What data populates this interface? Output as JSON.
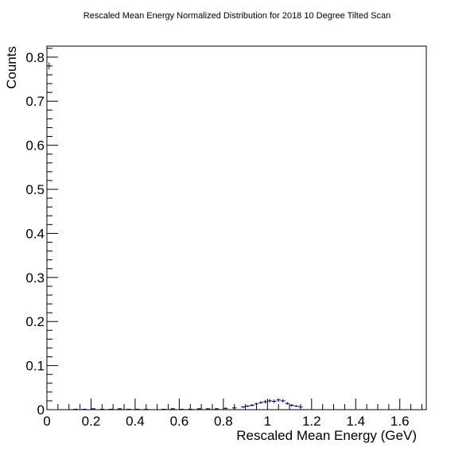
{
  "chart_data": {
    "type": "scatter",
    "title": "Rescaled Mean Energy Normalized Distribution for 2018 10 Degree Tilted Scan",
    "xlabel": "Rescaled Mean Energy (GeV)",
    "ylabel": "Counts",
    "xlim": [
      0,
      1.72
    ],
    "ylim": [
      0,
      0.825
    ],
    "x_ticks": [
      0,
      0.2,
      0.4,
      0.6,
      0.8,
      1,
      1.2,
      1.4,
      1.6
    ],
    "x_tick_labels": [
      "0",
      "0.2",
      "0.4",
      "0.6",
      "0.8",
      "1",
      "1.2",
      "1.4",
      "1.6"
    ],
    "y_ticks": [
      0,
      0.1,
      0.2,
      0.3,
      0.4,
      0.5,
      0.6,
      0.7,
      0.8
    ],
    "y_tick_labels": [
      "0",
      "0.1",
      "0.2",
      "0.3",
      "0.4",
      "0.5",
      "0.6",
      "0.7",
      "0.8"
    ],
    "grid": false,
    "marker_color": "#000066",
    "series": [
      {
        "bin_width": 0.02,
        "x": [
          0.01,
          0.13,
          0.17,
          0.21,
          0.25,
          0.29,
          0.33,
          0.37,
          0.41,
          0.45,
          0.53,
          0.57,
          0.61,
          0.65,
          0.69,
          0.73,
          0.77,
          0.81,
          0.85,
          0.89,
          0.91,
          0.93,
          0.95,
          0.97,
          0.99,
          1.01,
          1.03,
          1.05,
          1.07,
          1.09,
          1.11,
          1.13,
          1.15
        ],
        "y": [
          0.78,
          0.001,
          0.001,
          0.002,
          0.001,
          0.001,
          0.002,
          0.001,
          0.001,
          0.001,
          0.001,
          0.002,
          0.001,
          0.001,
          0.002,
          0.002,
          0.002,
          0.003,
          0.004,
          0.006,
          0.008,
          0.01,
          0.013,
          0.016,
          0.018,
          0.02,
          0.019,
          0.022,
          0.02,
          0.014,
          0.01,
          0.008,
          0.006
        ],
        "yerr": [
          0.008,
          0.001,
          0.001,
          0.001,
          0.001,
          0.001,
          0.001,
          0.001,
          0.001,
          0.001,
          0.001,
          0.001,
          0.001,
          0.001,
          0.001,
          0.001,
          0.001,
          0.002,
          0.002,
          0.002,
          0.002,
          0.003,
          0.003,
          0.003,
          0.004,
          0.004,
          0.004,
          0.004,
          0.004,
          0.003,
          0.003,
          0.002,
          0.002
        ]
      }
    ]
  }
}
